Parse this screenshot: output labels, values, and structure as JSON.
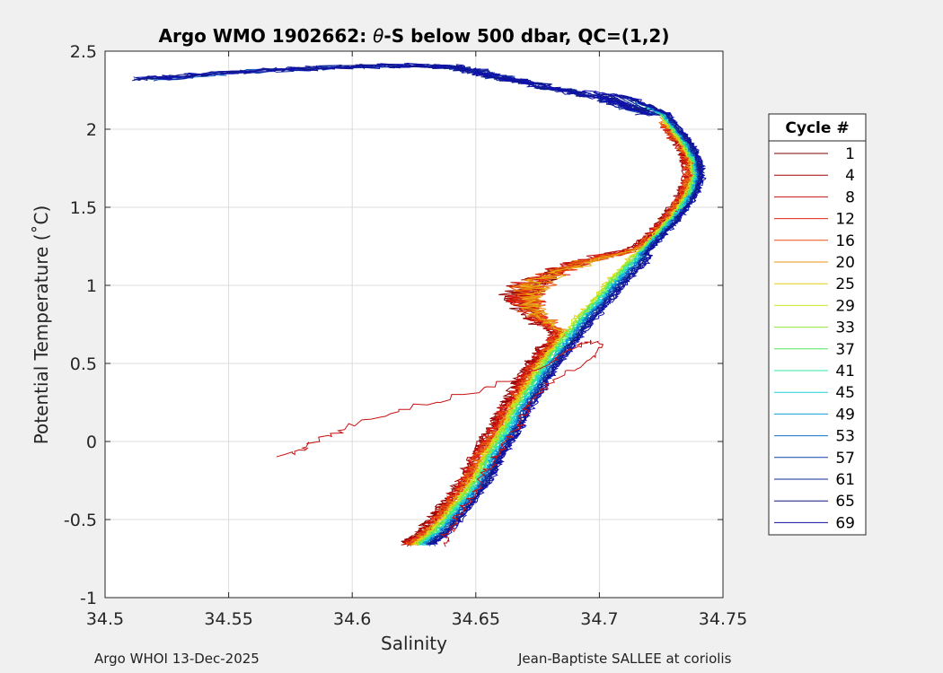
{
  "chart_data": {
    "type": "line",
    "title_main": "Argo WMO 1902662: ",
    "title_theta": "θ",
    "title_rest": "-S below 500 dbar,  QC=(1,2)",
    "xlabel": "Salinity",
    "ylabel": "Potential Temperature (˚C)",
    "xlim": [
      34.5,
      34.75
    ],
    "ylim": [
      -1,
      2.5
    ],
    "xticks": [
      "34.5",
      "34.55",
      "34.6",
      "34.65",
      "34.7",
      "34.75"
    ],
    "xtick_values": [
      34.5,
      34.55,
      34.6,
      34.65,
      34.7,
      34.75
    ],
    "yticks": [
      "-1",
      "-0.5",
      "0",
      "0.5",
      "1",
      "1.5",
      "2",
      "2.5"
    ],
    "ytick_values": [
      -1,
      -0.5,
      0,
      0.5,
      1,
      1.5,
      2,
      2.5
    ],
    "grid": true,
    "legend_title": "Cycle #",
    "legend_entries": [
      "1",
      "4",
      "8",
      "12",
      "16",
      "20",
      "25",
      "29",
      "33",
      "37",
      "41",
      "45",
      "49",
      "53",
      "57",
      "61",
      "65",
      "69"
    ],
    "legend_colors": [
      "#800000",
      "#a00000",
      "#c81010",
      "#e02010",
      "#e85010",
      "#e89010",
      "#e8d010",
      "#c8e820",
      "#90e840",
      "#50e860",
      "#30e8a0",
      "#20d0e0",
      "#10a0d8",
      "#1070c8",
      "#1040b0",
      "#102898",
      "#101880",
      "#1010a0"
    ],
    "series_colors": [
      "#800000",
      "#900000",
      "#a00000",
      "#b00808",
      "#c81010",
      "#d81810",
      "#e02010",
      "#e43810",
      "#e85010",
      "#e87010",
      "#e89010",
      "#e8b010",
      "#e8d010",
      "#d8e018",
      "#c8e820",
      "#a8e830",
      "#90e840",
      "#70e850",
      "#50e860",
      "#40e880",
      "#30e8a0",
      "#28e0c0",
      "#20d0e0",
      "#18b8e0",
      "#10a0d8",
      "#1088d0",
      "#1070c8",
      "#1058c0",
      "#1040b0",
      "#1030a0",
      "#102898",
      "#102090",
      "#101880",
      "#101890",
      "#1010a0",
      "#1010b0"
    ],
    "core_curve": {
      "t": [
        2.35,
        2.3,
        2.25,
        2.2,
        2.1,
        2.0,
        1.9,
        1.8,
        1.7,
        1.6,
        1.5,
        1.4,
        1.3,
        1.2,
        1.1,
        1.0,
        0.9,
        0.8,
        0.7,
        0.6,
        0.5,
        0.4,
        0.3,
        0.2,
        0.1,
        0.0,
        -0.1,
        -0.2,
        -0.3,
        -0.4,
        -0.5,
        -0.6,
        -0.66
      ],
      "s": [
        34.62,
        34.66,
        34.69,
        34.71,
        34.725,
        34.73,
        34.735,
        34.738,
        34.739,
        34.737,
        34.733,
        34.728,
        34.722,
        34.716,
        34.71,
        34.704,
        34.699,
        34.693,
        34.688,
        34.683,
        34.678,
        34.674,
        34.67,
        34.666,
        34.663,
        34.659,
        34.655,
        34.652,
        34.648,
        34.643,
        34.638,
        34.632,
        34.627
      ]
    },
    "early_curve": {
      "t": [
        -0.1,
        -0.05,
        0.0,
        0.1,
        0.2,
        0.3,
        0.4,
        0.5,
        0.6,
        0.65,
        0.6,
        0.5,
        0.4,
        0.3,
        0.2,
        0.1,
        0.0,
        -0.1,
        -0.2,
        -0.3,
        -0.4,
        -0.5,
        -0.6,
        -0.66
      ],
      "s": [
        34.57,
        34.58,
        34.585,
        34.6,
        34.62,
        34.645,
        34.665,
        34.68,
        34.69,
        34.695,
        34.702,
        34.695,
        34.682,
        34.675,
        34.67,
        34.668,
        34.662,
        34.658,
        34.654,
        34.65,
        34.646,
        34.642,
        34.638,
        34.637
      ]
    },
    "warm_tail": {
      "t": [
        2.32,
        2.35,
        2.38,
        2.4,
        2.41,
        2.4,
        2.37,
        2.33,
        2.3,
        2.25,
        2.2,
        2.15,
        2.1
      ],
      "s": [
        34.515,
        34.54,
        34.57,
        34.6,
        34.625,
        34.64,
        34.65,
        34.66,
        34.67,
        34.685,
        34.7,
        34.71,
        34.72
      ]
    }
  },
  "footer": {
    "left": "Argo WHOI 13-Dec-2025",
    "right": "Jean-Baptiste SALLEE at coriolis"
  }
}
